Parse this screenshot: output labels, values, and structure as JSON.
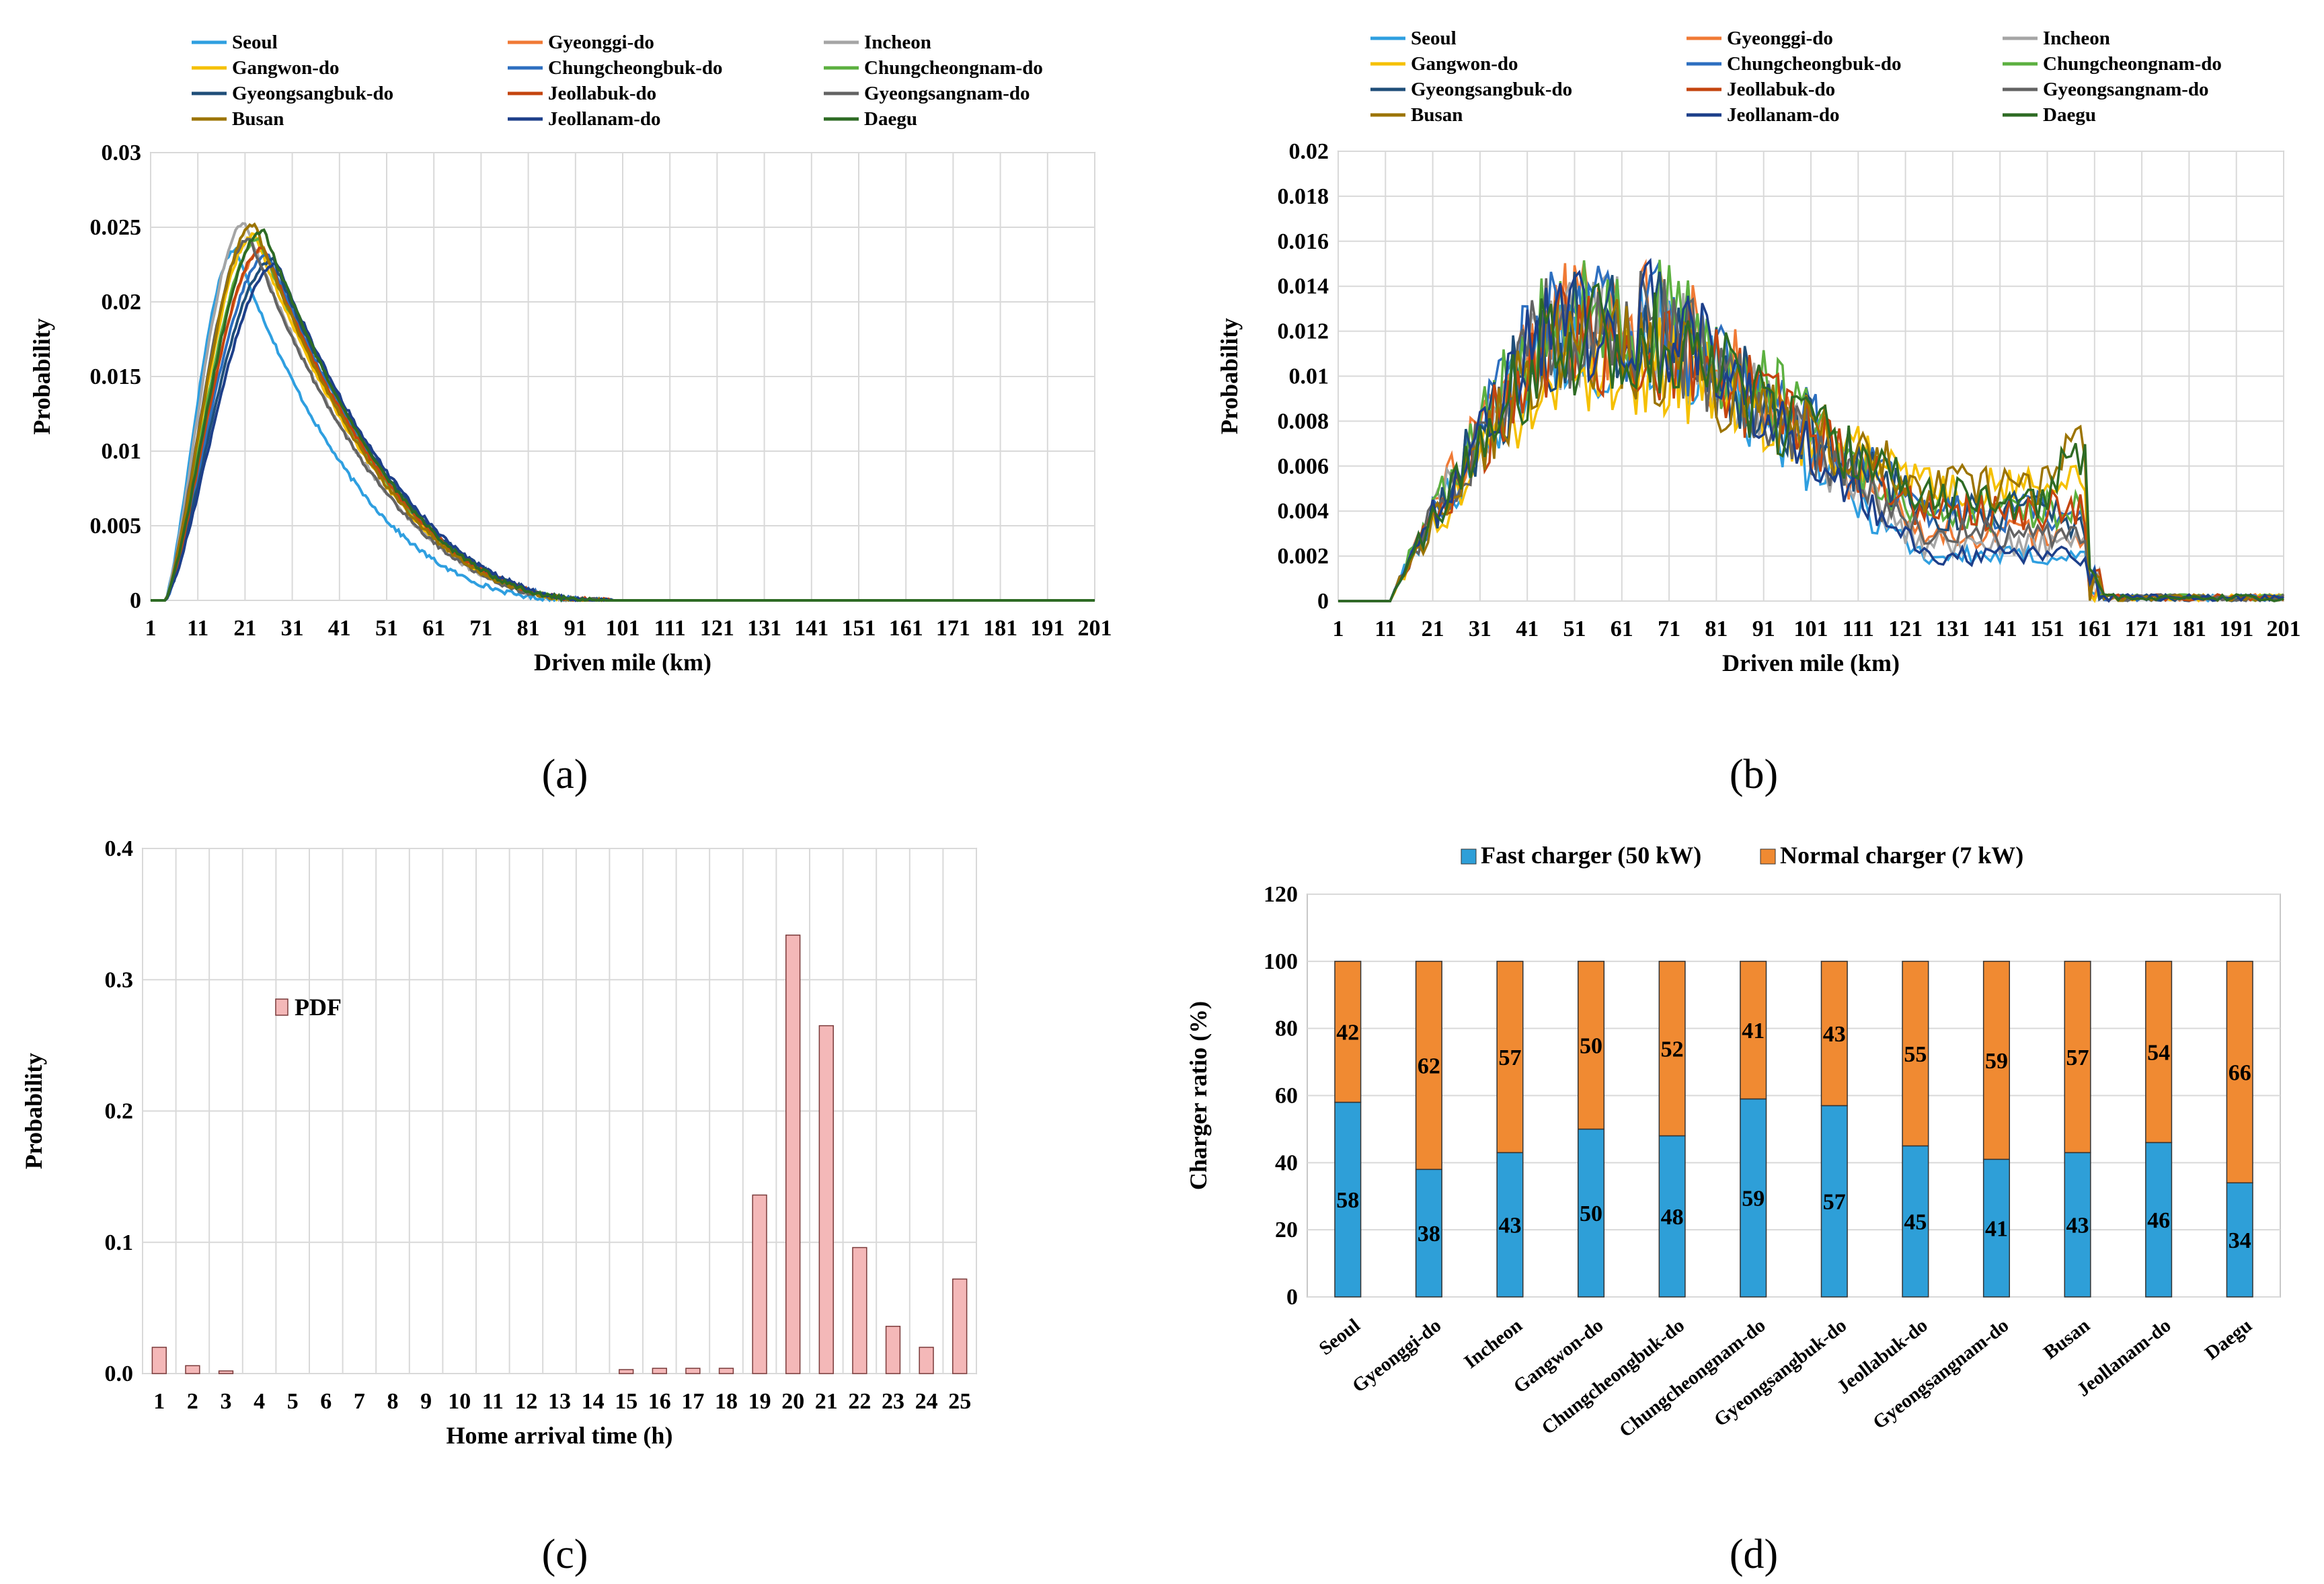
{
  "colors": {
    "Seoul": "#2f9fe0",
    "Gyeonggi-do": "#f07a35",
    "Incheon": "#a5a5a5",
    "Gangwon-do": "#f5c000",
    "Chungcheongbuk-do": "#2d6fc0",
    "Chungcheongnam-do": "#5cb040",
    "Gyeongsangbuk-do": "#1f4e79",
    "Jeollabuk-do": "#c4450f",
    "Gyeongsangnam-do": "#636363",
    "Busan": "#9c7400",
    "Jeollanam-do": "#1d3f8a",
    "Daegu": "#2e6b24",
    "pdf_bar": "#f4b8b8",
    "fast_charger": "#2e9fd8",
    "normal_charger": "#f08a32"
  },
  "chart_data": [
    {
      "id": "a",
      "caption": "(a)",
      "type": "line",
      "xlabel": "Driven mile (km)",
      "ylabel": "Probability",
      "xticks": [
        "1",
        "11",
        "21",
        "31",
        "41",
        "51",
        "61",
        "71",
        "81",
        "91",
        "101",
        "111",
        "121",
        "131",
        "141",
        "151",
        "161",
        "171",
        "181",
        "191",
        "201"
      ],
      "yticks": [
        "0",
        "0.005",
        "0.01",
        "0.015",
        "0.02",
        "0.025",
        "0.03"
      ],
      "xlim": [
        1,
        201
      ],
      "ylim": [
        0,
        0.03
      ],
      "legend": [
        "Seoul",
        "Gyeonggi-do",
        "Incheon",
        "Gangwon-do",
        "Chungcheongbuk-do",
        "Chungcheongnam-do",
        "Gyeongsangbuk-do",
        "Jeollabuk-do",
        "Gyeongsangnam-do",
        "Busan",
        "Jeollanam-do",
        "Daegu"
      ],
      "series": [
        {
          "name": "Seoul",
          "peak_x": 19,
          "peak_y": 0.0235,
          "tail": 0.7
        },
        {
          "name": "Gyeonggi-do",
          "peak_x": 25,
          "peak_y": 0.0235,
          "tail": 1.0
        },
        {
          "name": "Incheon",
          "peak_x": 21,
          "peak_y": 0.0253,
          "tail": 0.95
        },
        {
          "name": "Gangwon-do",
          "peak_x": 23,
          "peak_y": 0.0245,
          "tail": 1.0
        },
        {
          "name": "Chungcheongbuk-do",
          "peak_x": 26,
          "peak_y": 0.0232,
          "tail": 1.05
        },
        {
          "name": "Chungcheongnam-do",
          "peak_x": 24,
          "peak_y": 0.0242,
          "tail": 1.05
        },
        {
          "name": "Gyeongsangbuk-do",
          "peak_x": 27,
          "peak_y": 0.0228,
          "tail": 1.1
        },
        {
          "name": "Jeollabuk-do",
          "peak_x": 25,
          "peak_y": 0.0236,
          "tail": 1.05
        },
        {
          "name": "Gyeongsangnam-do",
          "peak_x": 22,
          "peak_y": 0.0243,
          "tail": 0.95
        },
        {
          "name": "Busan",
          "peak_x": 23,
          "peak_y": 0.0252,
          "tail": 0.95
        },
        {
          "name": "Jeollanam-do",
          "peak_x": 28,
          "peak_y": 0.0225,
          "tail": 1.12
        },
        {
          "name": "Daegu",
          "peak_x": 25,
          "peak_y": 0.0248,
          "tail": 1.0
        }
      ]
    },
    {
      "id": "b",
      "caption": "(b)",
      "type": "line",
      "xlabel": "Driven mile (km)",
      "ylabel": "Probability",
      "xticks": [
        "1",
        "11",
        "21",
        "31",
        "41",
        "51",
        "61",
        "71",
        "81",
        "91",
        "101",
        "111",
        "121",
        "131",
        "141",
        "151",
        "161",
        "171",
        "181",
        "191",
        "201"
      ],
      "yticks": [
        "0",
        "0.002",
        "0.004",
        "0.006",
        "0.008",
        "0.01",
        "0.012",
        "0.014",
        "0.016",
        "0.018",
        "0.02"
      ],
      "xlim": [
        1,
        201
      ],
      "ylim": [
        0,
        0.02
      ],
      "legend": [
        "Seoul",
        "Gyeonggi-do",
        "Incheon",
        "Gangwon-do",
        "Chungcheongbuk-do",
        "Chungcheongnam-do",
        "Gyeongsangbuk-do",
        "Jeollabuk-do",
        "Gyeongsangnam-do",
        "Busan",
        "Jeollanam-do",
        "Daegu"
      ],
      "series": [
        {
          "name": "Seoul",
          "plateau": 0.0115,
          "tail": 0.002,
          "spike": 0.0
        },
        {
          "name": "Gyeonggi-do",
          "plateau": 0.0125,
          "tail": 0.003,
          "spike": 0.003
        },
        {
          "name": "Incheon",
          "plateau": 0.012,
          "tail": 0.0025,
          "spike": 0.0
        },
        {
          "name": "Gangwon-do",
          "plateau": 0.0105,
          "tail": 0.005,
          "spike": 0.006
        },
        {
          "name": "Chungcheongbuk-do",
          "plateau": 0.0125,
          "tail": 0.004,
          "spike": 0.004
        },
        {
          "name": "Chungcheongnam-do",
          "plateau": 0.0125,
          "tail": 0.004,
          "spike": 0.004
        },
        {
          "name": "Gyeongsangbuk-do",
          "plateau": 0.012,
          "tail": 0.004,
          "spike": 0.003
        },
        {
          "name": "Jeollabuk-do",
          "plateau": 0.0115,
          "tail": 0.004,
          "spike": 0.004
        },
        {
          "name": "Gyeongsangnam-do",
          "plateau": 0.012,
          "tail": 0.003,
          "spike": 0.0
        },
        {
          "name": "Busan",
          "plateau": 0.011,
          "tail": 0.005,
          "spike": 0.0102
        },
        {
          "name": "Jeollanam-do",
          "plateau": 0.0125,
          "tail": 0.002,
          "spike": 0.0
        },
        {
          "name": "Daegu",
          "plateau": 0.0115,
          "tail": 0.0045,
          "spike": 0.008
        }
      ]
    },
    {
      "id": "c",
      "caption": "(c)",
      "type": "bar",
      "xlabel": "Home arrival time (h)",
      "ylabel": "Probability",
      "legend": [
        "PDF"
      ],
      "categories": [
        "1",
        "2",
        "3",
        "4",
        "5",
        "6",
        "7",
        "8",
        "9",
        "10",
        "11",
        "12",
        "13",
        "14",
        "15",
        "16",
        "17",
        "18",
        "19",
        "20",
        "21",
        "22",
        "23",
        "24",
        "25"
      ],
      "values": [
        0.02,
        0.006,
        0.002,
        0,
        0,
        0,
        0,
        0,
        0,
        0,
        0,
        0,
        0,
        0,
        0.003,
        0.004,
        0.004,
        0.004,
        0.136,
        0.334,
        0.265,
        0.096,
        0.036,
        0.02,
        0.072
      ],
      "yticks": [
        "0.0",
        "0.1",
        "0.2",
        "0.3",
        "0.4"
      ],
      "ylim": [
        0,
        0.4
      ]
    },
    {
      "id": "d",
      "caption": "(d)",
      "type": "bar",
      "stacked": true,
      "ylabel": "Charger ratio (%)",
      "categories": [
        "Seoul",
        "Gyeonggi-do",
        "Incheon",
        "Gangwon-do",
        "Chungcheongbuk-do",
        "Chungcheongnam-do",
        "Gyeongsangbuk-do",
        "Jeollabuk-do",
        "Gyeongsangnam-do",
        "Busan",
        "Jeollanam-do",
        "Daegu"
      ],
      "series": [
        {
          "name": "Fast charger (50 kW)",
          "values": [
            58,
            38,
            43,
            50,
            48,
            59,
            57,
            45,
            41,
            43,
            46,
            34
          ],
          "labels": [
            "58",
            "38",
            "43",
            "50",
            "48",
            "59",
            "57",
            "45",
            "41",
            "43",
            "46",
            "34"
          ]
        },
        {
          "name": "Normal charger (7 kW)",
          "values": [
            42,
            62,
            57,
            50,
            52,
            41,
            43,
            55,
            59,
            57,
            54,
            66
          ],
          "labels": [
            "42",
            "62",
            "57",
            "50",
            "52",
            "41",
            "43",
            "55",
            "59",
            "57",
            "54",
            "66"
          ]
        }
      ],
      "yticks": [
        "0",
        "20",
        "40",
        "60",
        "80",
        "100",
        "120"
      ],
      "ylim": [
        0,
        120
      ]
    }
  ]
}
